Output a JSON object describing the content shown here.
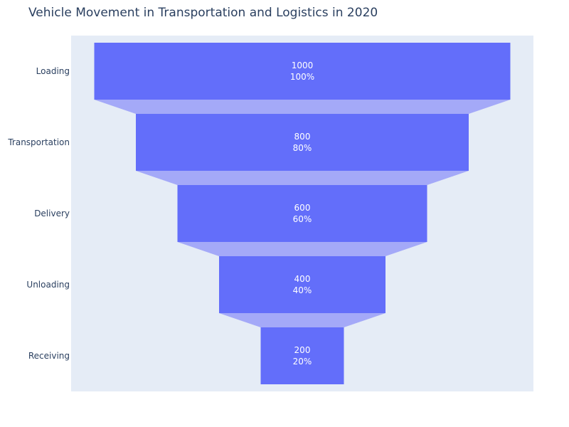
{
  "chart_data": {
    "type": "funnel",
    "title": "Vehicle Movement in Transportation and Logistics in 2020",
    "stages": [
      "Loading",
      "Transportation",
      "Delivery",
      "Unloading",
      "Receiving"
    ],
    "values": [
      1000,
      800,
      600,
      400,
      200
    ],
    "percents": [
      "100%",
      "80%",
      "60%",
      "40%",
      "20%"
    ],
    "bar_color": "#636efa",
    "connector_color": "#a4a9f8",
    "plot_background": "#e5ecf6",
    "grid": false,
    "legend": "none"
  }
}
